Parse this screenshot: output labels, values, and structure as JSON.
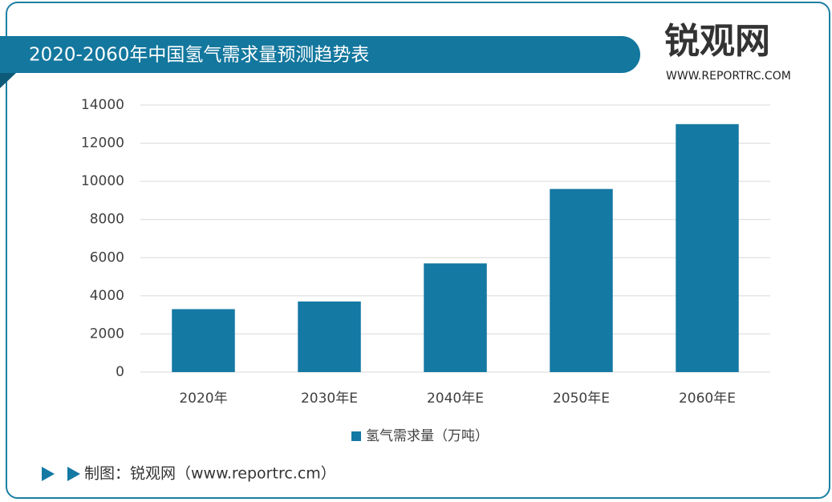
{
  "chart_data": {
    "type": "bar",
    "title": "2020-2060年中国氢气需求量预测趋势表",
    "categories": [
      "2020年",
      "2030年E",
      "2040年E",
      "2050年E",
      "2060年E"
    ],
    "series": [
      {
        "name": "氢气需求量（万吨）",
        "color": "#1479a3",
        "values": [
          3300,
          3700,
          5700,
          9600,
          13000
        ]
      }
    ],
    "ylim": [
      0,
      14000
    ],
    "yticks": [
      0,
      2000,
      4000,
      6000,
      8000,
      10000,
      12000,
      14000
    ],
    "grid": true,
    "legend": "bottom"
  },
  "logo": {
    "name": "锐观网",
    "url": "WWW.REPORTRC.COM"
  },
  "source": "制图：锐观网（www.reportrc.cm）"
}
